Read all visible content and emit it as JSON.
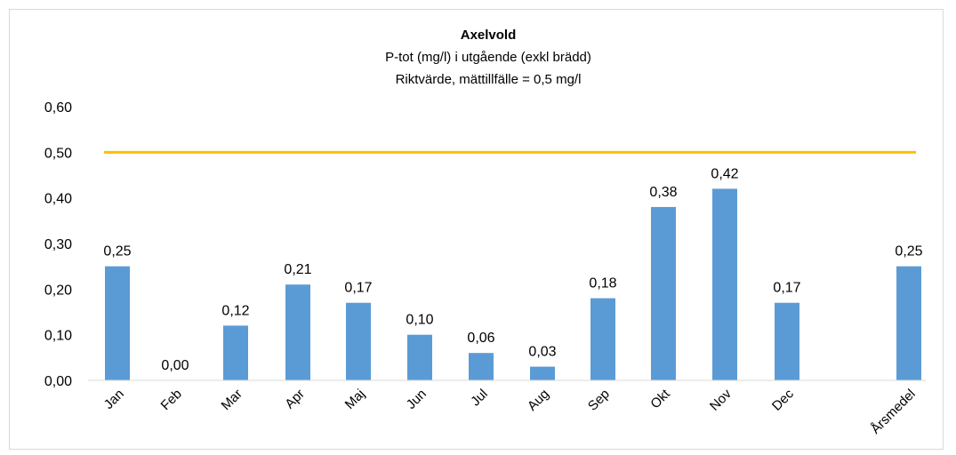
{
  "chart_data": {
    "type": "bar",
    "title": "Axelvold",
    "subtitle_lines": [
      "P-tot (mg/l) i utgående (exkl brädd)",
      "Riktvärde, mättillfälle = 0,5 mg/l"
    ],
    "categories": [
      "Jan",
      "Feb",
      "Mar",
      "Apr",
      "Maj",
      "Jun",
      "Jul",
      "Aug",
      "Sep",
      "Okt",
      "Nov",
      "Dec",
      "Årsmedel"
    ],
    "values": [
      0.25,
      0.0,
      0.12,
      0.21,
      0.17,
      0.1,
      0.06,
      0.03,
      0.18,
      0.38,
      0.42,
      0.17,
      0.25
    ],
    "data_labels": [
      "0,25",
      "0,00",
      "0,12",
      "0,21",
      "0,17",
      "0,10",
      "0,06",
      "0,03",
      "0,18",
      "0,38",
      "0,42",
      "0,17",
      "0,25"
    ],
    "ylim": [
      0,
      0.6
    ],
    "yticks": [
      0,
      0.1,
      0.2,
      0.3,
      0.4,
      0.5,
      0.6
    ],
    "ytick_labels": [
      "0,00",
      "0,10",
      "0,20",
      "0,30",
      "0,40",
      "0,50",
      "0,60"
    ],
    "reference_line": {
      "value": 0.5
    },
    "grid": false,
    "legend": "none",
    "colors": {
      "bar": "#5b9bd5",
      "reference_line": "#ffc000",
      "axis": "#d9d9d9"
    }
  }
}
